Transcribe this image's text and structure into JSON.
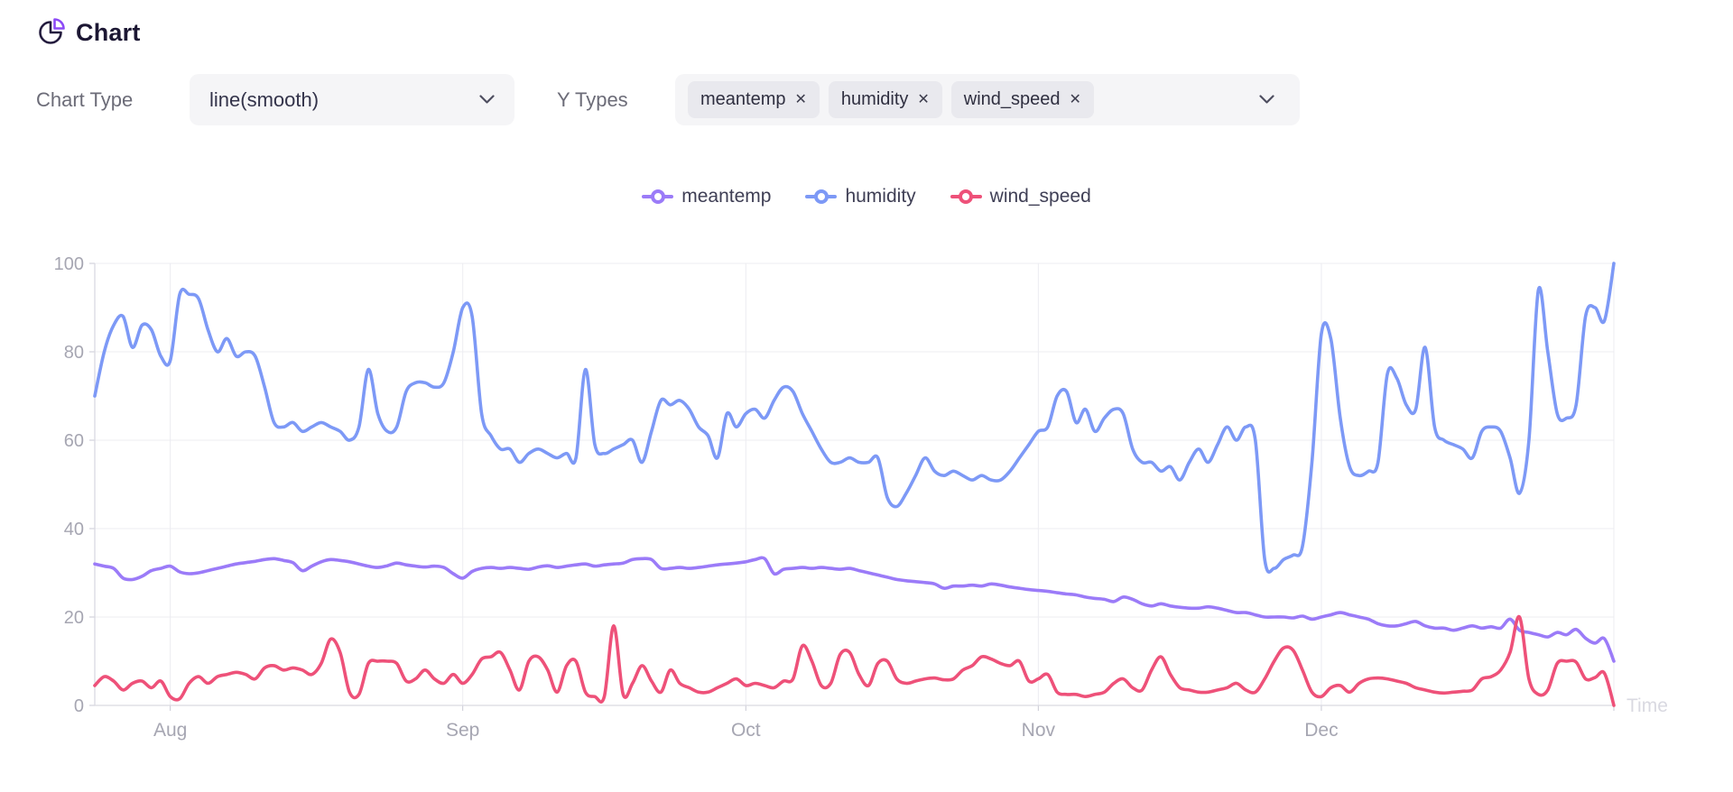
{
  "header": {
    "title": "Chart"
  },
  "controls": {
    "chart_type_label": "Chart Type",
    "chart_type_value": "line(smooth)",
    "y_types_label": "Y Types",
    "y_types": [
      "meantemp",
      "humidity",
      "wind_speed"
    ],
    "remove_icon": "✕"
  },
  "colors": {
    "accent_purple": "#8d4bf6",
    "control_bg": "#f5f5f7",
    "tag_bg": "#e9e9ee",
    "grid_line": "#ececf1",
    "axis_line": "#d9d9e1",
    "axis_label": "#a6a6b2",
    "axis_name": "#d9d9e1"
  },
  "chart_data": {
    "type": "line",
    "smooth": true,
    "x_axis_name": "Time",
    "x_start_date": "2016-07-24",
    "x_interval": "daily",
    "x_tick_labels": [
      "Aug",
      "Sep",
      "Oct",
      "Nov",
      "Dec"
    ],
    "ylim": [
      0,
      100
    ],
    "y_ticks": [
      0,
      20,
      40,
      60,
      80,
      100
    ],
    "grid": true,
    "legend_position": "top",
    "series": [
      {
        "name": "meantemp",
        "color": "#9b7bf8",
        "values": [
          32,
          31.5,
          31,
          28.8,
          28.5,
          29.2,
          30.5,
          31,
          31.5,
          30.2,
          29.8,
          30,
          30.5,
          31,
          31.5,
          32,
          32.3,
          32.6,
          33,
          33.2,
          32.8,
          32.3,
          30.5,
          31.5,
          32.5,
          33,
          32.8,
          32.5,
          32,
          31.5,
          31.2,
          31.6,
          32.2,
          31.8,
          31.5,
          31.3,
          31.5,
          31.2,
          29.8,
          28.8,
          30.3,
          31,
          31.2,
          31,
          31.2,
          31,
          30.8,
          31.3,
          31.6,
          31.2,
          31.5,
          31.8,
          32,
          31.5,
          31.8,
          32,
          32.2,
          33,
          33.2,
          33,
          31,
          31,
          31.2,
          31,
          31.2,
          31.5,
          31.8,
          32,
          32.2,
          32.5,
          33,
          33.2,
          29.8,
          30.8,
          31,
          31.2,
          31,
          31.2,
          31,
          30.8,
          31,
          30.5,
          30,
          29.5,
          29,
          28.5,
          28.2,
          28,
          27.8,
          27.5,
          26.5,
          27,
          27,
          27.2,
          27,
          27.5,
          27.2,
          26.8,
          26.5,
          26.2,
          26,
          25.8,
          25.5,
          25.2,
          25,
          24.5,
          24.2,
          24,
          23.5,
          24.5,
          24,
          23,
          22.5,
          23,
          22.5,
          22.2,
          22,
          22,
          22.3,
          22,
          21.5,
          21,
          21,
          20.5,
          20,
          20,
          20,
          19.8,
          20.2,
          19.5,
          20,
          20.5,
          21,
          20.5,
          20,
          19.5,
          18.5,
          18,
          18,
          18.5,
          19,
          18,
          17.5,
          17.5,
          17,
          17.5,
          18,
          17.5,
          17.8,
          17.5,
          19.5,
          17,
          16.5,
          16,
          15.5,
          16.5,
          16,
          17.2,
          15.2,
          14.1,
          15.1,
          10
        ]
      },
      {
        "name": "humidity",
        "color": "#7d99f6",
        "values": [
          70,
          80,
          86,
          88,
          81,
          86,
          85,
          79,
          78,
          93,
          93,
          92,
          85,
          80,
          83,
          79,
          80,
          79,
          72,
          64,
          63,
          64,
          62,
          63,
          64,
          63,
          62,
          60,
          63,
          76,
          66,
          62,
          63,
          71,
          73,
          73,
          72,
          73,
          80,
          90,
          88,
          66,
          61,
          58,
          58,
          55,
          57,
          58,
          57,
          56,
          57,
          56,
          76,
          59,
          57,
          58,
          59,
          60,
          55,
          62,
          69,
          68,
          69,
          67,
          63,
          61,
          56,
          66,
          63,
          66,
          67,
          65,
          69,
          72,
          71,
          66,
          62,
          58,
          55,
          55,
          56,
          55,
          55,
          56,
          47,
          45,
          48,
          52,
          56,
          53,
          52,
          53,
          52,
          51,
          52,
          51,
          51,
          53,
          56,
          59,
          62,
          63,
          70,
          71,
          64,
          67,
          62,
          65,
          67,
          66,
          58,
          55,
          55,
          53,
          54,
          51,
          55,
          58,
          55,
          59,
          63,
          60,
          63,
          60,
          33,
          31,
          33,
          34,
          36,
          55,
          84,
          83,
          65,
          54,
          52,
          53,
          55,
          75,
          74,
          68,
          67,
          81,
          63,
          60,
          59,
          58,
          56,
          62,
          63,
          62,
          56,
          48,
          60,
          94,
          80,
          66,
          65,
          68,
          88,
          90,
          87,
          100
        ]
      },
      {
        "name": "wind_speed",
        "color": "#ee5179",
        "values": [
          4.5,
          6.5,
          5.5,
          3.5,
          5,
          5.5,
          4,
          5.5,
          2,
          1.5,
          5,
          6.5,
          5,
          6.5,
          7,
          7.5,
          7,
          6,
          8.5,
          9,
          8,
          8.5,
          8,
          7,
          9.5,
          15,
          12,
          3,
          2.5,
          9.5,
          10,
          10,
          9.5,
          5.5,
          6,
          8,
          6,
          5,
          7,
          5,
          7,
          10.5,
          11,
          12,
          8,
          3.5,
          10,
          11,
          8,
          3,
          9,
          10,
          3,
          2,
          2,
          18,
          2.5,
          5,
          9,
          5.5,
          3,
          8,
          5,
          4,
          3,
          3,
          4,
          5,
          6,
          4.5,
          5,
          4.5,
          4,
          5.5,
          6,
          13.5,
          10,
          4.5,
          5,
          11.5,
          12,
          7,
          4.5,
          9.5,
          10,
          6,
          5,
          5.5,
          6,
          6.2,
          5.8,
          6,
          8,
          9,
          11,
          10.5,
          9.5,
          9,
          10,
          5.5,
          6,
          7,
          3,
          2.5,
          2.5,
          2,
          2.5,
          3,
          5,
          6,
          4,
          3.5,
          8,
          11,
          7,
          4,
          3.5,
          3,
          3,
          3.5,
          4,
          5,
          3.5,
          3,
          6,
          10,
          13,
          12.5,
          8,
          3,
          2,
          4,
          4.5,
          3,
          5,
          6,
          6.2,
          6,
          5.5,
          5,
          4,
          3.5,
          3,
          2.8,
          3,
          3.2,
          3.5,
          6,
          6.5,
          8,
          12,
          20,
          6,
          2.5,
          3.5,
          9.5,
          10,
          9.8,
          6,
          6.3,
          7.3,
          0
        ]
      }
    ]
  }
}
